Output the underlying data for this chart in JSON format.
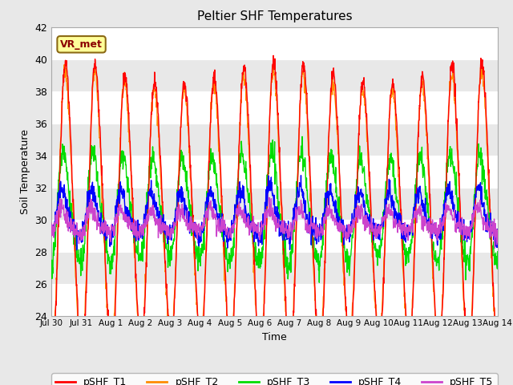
{
  "title": "Peltier SHF Temperatures",
  "xlabel": "Time",
  "ylabel": "Soil Temperature",
  "ylim": [
    24,
    42
  ],
  "yticks": [
    24,
    26,
    28,
    30,
    32,
    34,
    36,
    38,
    40,
    42
  ],
  "xlim_days": [
    0,
    15
  ],
  "xtick_labels": [
    "Jul 30",
    "Jul 31",
    "Aug 1",
    "Aug 2",
    "Aug 3",
    "Aug 4",
    "Aug 5",
    "Aug 6",
    "Aug 7",
    "Aug 8",
    "Aug 9",
    "Aug 10",
    "Aug 11",
    "Aug 12",
    "Aug 13",
    "Aug 14"
  ],
  "xtick_positions": [
    0,
    1,
    2,
    3,
    4,
    5,
    6,
    7,
    8,
    9,
    10,
    11,
    12,
    13,
    14,
    15
  ],
  "colors": {
    "T1": "#ff0000",
    "T2": "#ff8c00",
    "T3": "#00dd00",
    "T4": "#0000ff",
    "T5": "#cc44cc"
  },
  "annotation": "VR_met",
  "plot_bg_color": "#e8e8e8",
  "band_color_light": "#e8e8e8",
  "band_color_dark": "#d0d0d0",
  "legend_labels": [
    "pSHF_T1",
    "pSHF_T2",
    "pSHF_T3",
    "pSHF_T4",
    "pSHF_T5"
  ],
  "seed": 12345,
  "n_days": 15,
  "samples_per_day": 96,
  "T1_mean": 30.5,
  "T1_amp": 8.5,
  "T1_amp2": 0.8,
  "T2_mean": 30.3,
  "T2_amp": 8.2,
  "T2_amp2": 0.7,
  "T3_mean": 30.5,
  "T3_amp": 3.2,
  "T3_amp2": 0.5,
  "T4_mean": 30.2,
  "T4_amp": 1.3,
  "T4_amp2": 0.4,
  "T5_mean": 29.8,
  "T5_amp": 0.6,
  "T5_amp2": 0.25
}
